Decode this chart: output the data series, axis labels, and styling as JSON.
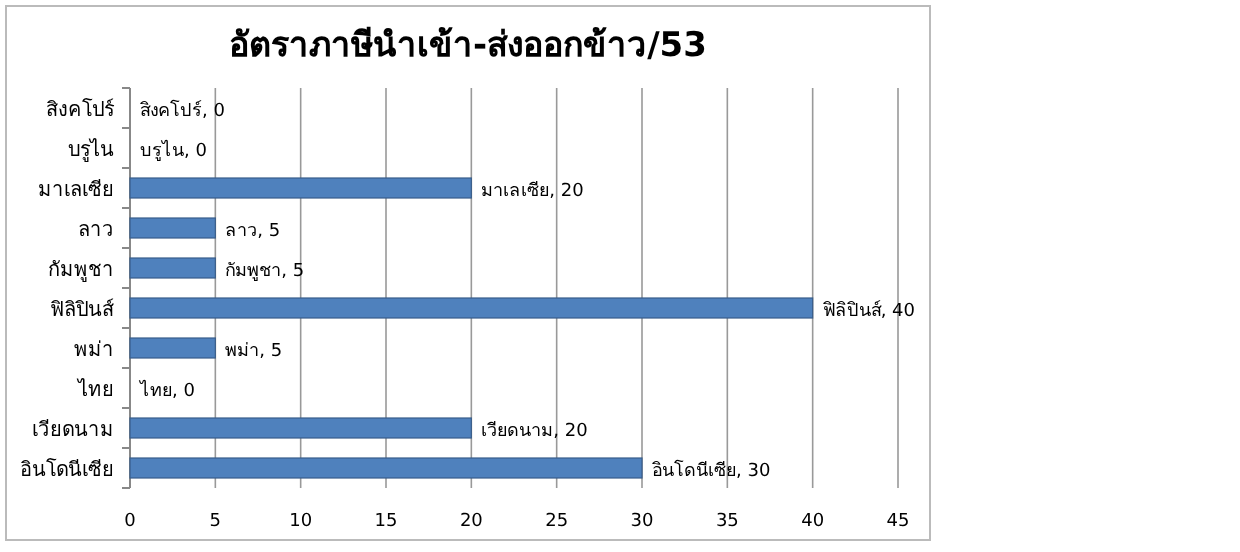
{
  "chart_data": {
    "type": "bar",
    "orientation": "horizontal",
    "title": "อัตราภาษีนำเข้า-ส่งออกข้าว/53",
    "categories": [
      "สิงคโปร์",
      "บรูไน",
      "มาเลเซีย",
      "ลาว",
      "กัมพูชา",
      "ฟิลิปินส์",
      "พม่า",
      "ไทย",
      "เวียดนาม",
      "อินโดนีเซีย"
    ],
    "values": [
      0,
      0,
      20,
      5,
      5,
      40,
      5,
      0,
      20,
      30
    ],
    "value_labels": [
      "สิงคโปร์, 0",
      "บรูไน, 0",
      "มาเลเซีย, 20",
      "ลาว, 5",
      "กัมพูชา, 5",
      "ฟิลิปินส์, 40",
      "พม่า, 5",
      "ไทย, 0",
      "เวียดนาม, 20",
      "อินโดนีเซีย, 30"
    ],
    "color": "#4f81bd",
    "xlim": [
      0,
      45
    ],
    "xticks": [
      0,
      5,
      10,
      15,
      20,
      25,
      30,
      35,
      40,
      45
    ],
    "grid": "x"
  }
}
